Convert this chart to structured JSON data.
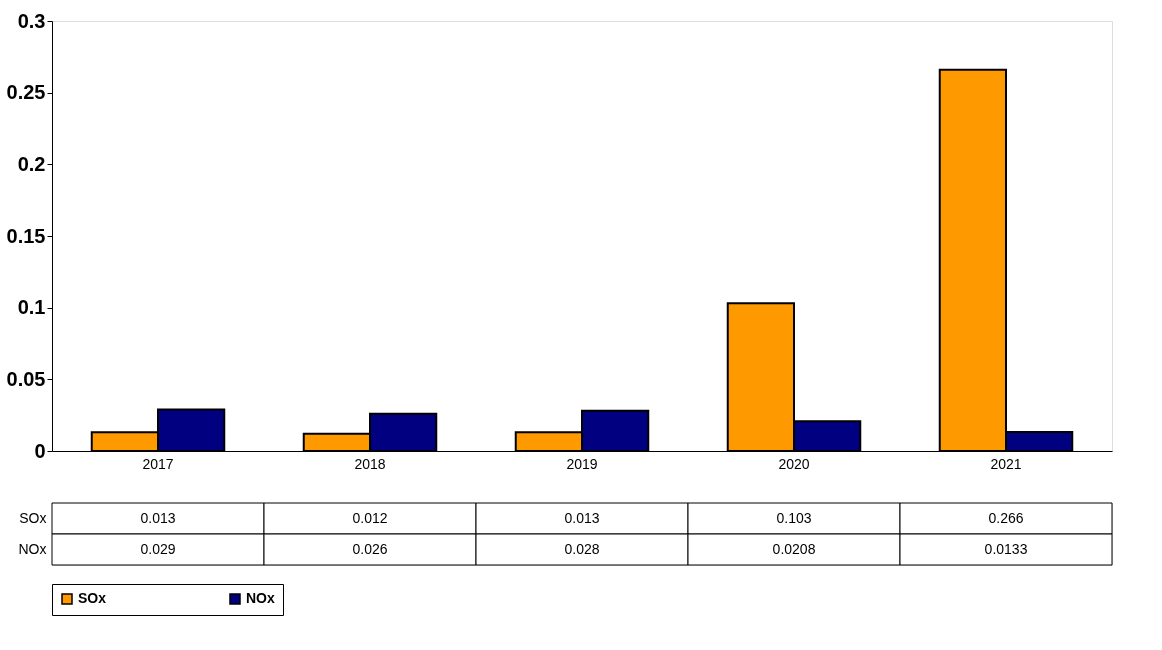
{
  "chart_data": {
    "type": "bar",
    "categories": [
      "2017",
      "2018",
      "2019",
      "2020",
      "2021"
    ],
    "series": [
      {
        "name": "SOx",
        "color": "#ff9900",
        "values": [
          0.013,
          0.012,
          0.013,
          0.103,
          0.266
        ]
      },
      {
        "name": "NOx",
        "color": "#000080",
        "values": [
          0.029,
          0.026,
          0.028,
          0.0208,
          0.0133
        ]
      }
    ],
    "ylim": [
      0,
      0.3
    ],
    "yticks": [
      0,
      0.05,
      0.1,
      0.15,
      0.2,
      0.25,
      0.3
    ],
    "data_labels": true,
    "legend": "bottom",
    "grid": false
  }
}
